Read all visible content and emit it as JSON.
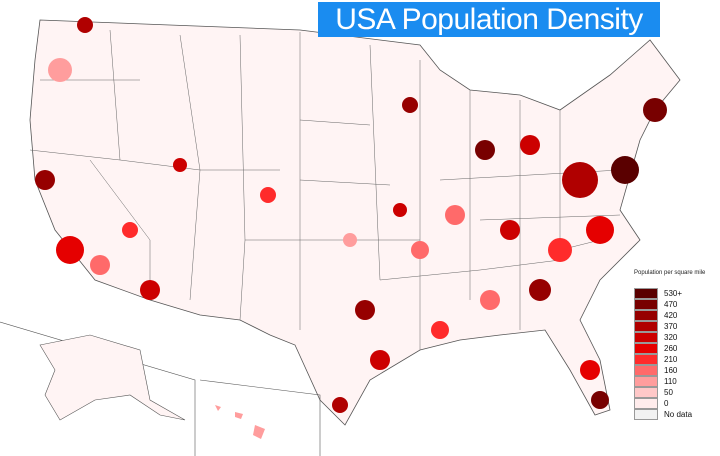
{
  "header": {
    "title": "USA Population Density"
  },
  "legend": {
    "title": "Population per square mile",
    "items": [
      {
        "label": "530+",
        "color": "#5a0000"
      },
      {
        "label": "470",
        "color": "#780000"
      },
      {
        "label": "420",
        "color": "#960000"
      },
      {
        "label": "370",
        "color": "#b00000"
      },
      {
        "label": "320",
        "color": "#cc0000"
      },
      {
        "label": "260",
        "color": "#e50000"
      },
      {
        "label": "210",
        "color": "#ff2b2b"
      },
      {
        "label": "160",
        "color": "#ff6a6a"
      },
      {
        "label": "110",
        "color": "#ff9d9d"
      },
      {
        "label": "50",
        "color": "#ffc8c8"
      },
      {
        "label": "0",
        "color": "#ffecec"
      },
      {
        "label": "No data",
        "color": "#f2f2f2"
      }
    ]
  }
}
